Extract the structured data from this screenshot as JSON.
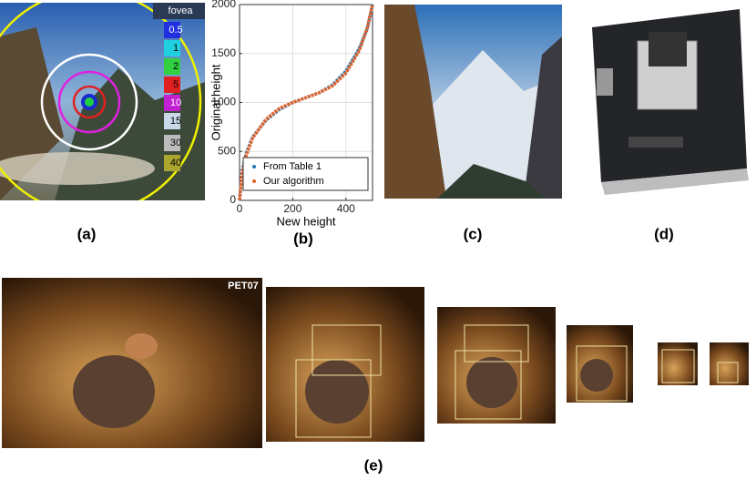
{
  "panels": {
    "a": "(a)",
    "b": "(b)",
    "c": "(c)",
    "d": "(d)",
    "e": "(e)"
  },
  "fovea_legend": {
    "title": "fovea",
    "items": [
      "0.5",
      "1",
      "2",
      "5",
      "10",
      "15",
      "30",
      "40"
    ]
  },
  "watermark": "PET07",
  "chart_data": {
    "type": "line",
    "x_label": "New height",
    "y_label": "Original height",
    "x": [
      0,
      10,
      25,
      50,
      100,
      150,
      200,
      250,
      300,
      350,
      400,
      450,
      480,
      500
    ],
    "series": [
      {
        "name": "From Table 1",
        "color": "#1f77b4",
        "values": [
          0,
          300,
          480,
          650,
          820,
          930,
          1000,
          1050,
          1100,
          1180,
          1320,
          1550,
          1750,
          2000
        ]
      },
      {
        "name": "Our algorithm",
        "color": "#e1622b",
        "values": [
          0,
          280,
          460,
          640,
          830,
          940,
          1000,
          1050,
          1100,
          1170,
          1300,
          1530,
          1760,
          2000
        ]
      }
    ],
    "xlim": [
      0,
      500
    ],
    "ylim": [
      0,
      2000
    ],
    "xticks": [
      0,
      200,
      400
    ],
    "yticks": [
      0,
      500,
      1000,
      1500,
      2000
    ],
    "grid": true,
    "legend": "lower-right"
  }
}
